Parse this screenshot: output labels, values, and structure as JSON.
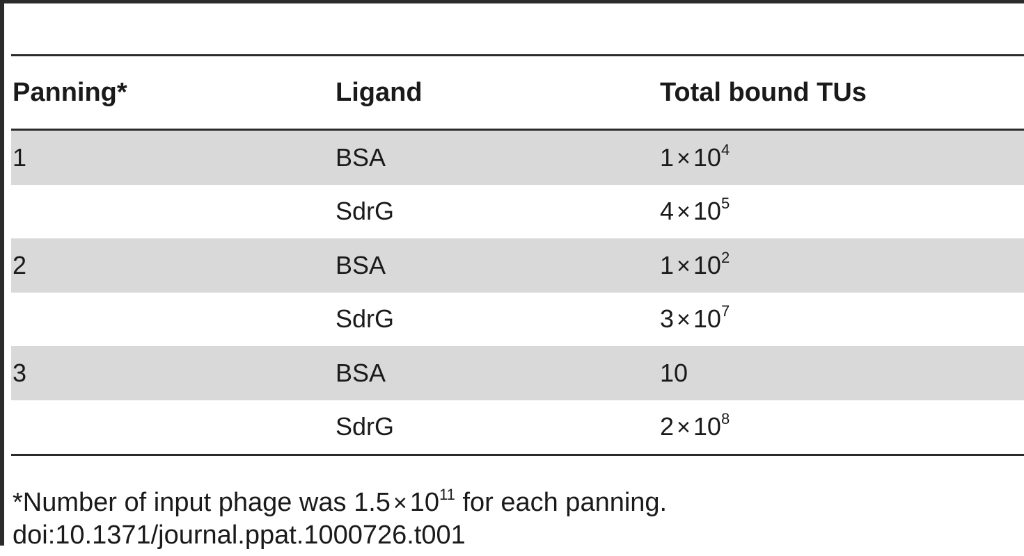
{
  "table": {
    "headers": [
      "Panning*",
      "Ligand",
      "Total bound TUs"
    ],
    "rows": [
      {
        "panning": "1",
        "ligand": "BSA",
        "coef": "1",
        "exp": "4"
      },
      {
        "panning": "",
        "ligand": "SdrG",
        "coef": "4",
        "exp": "5"
      },
      {
        "panning": "2",
        "ligand": "BSA",
        "coef": "1",
        "exp": "2"
      },
      {
        "panning": "",
        "ligand": "SdrG",
        "coef": "3",
        "exp": "7"
      },
      {
        "panning": "3",
        "ligand": "BSA",
        "plain": "10"
      },
      {
        "panning": "",
        "ligand": "SdrG",
        "coef": "2",
        "exp": "8"
      }
    ]
  },
  "footnote": {
    "text_before": "*Number of input phage was 1.5",
    "times": "×",
    "base": "10",
    "exp": "11",
    "text_after": " for each panning.",
    "doi": "doi:10.1371/journal.ppat.1000726.t001"
  },
  "colors": {
    "rule": "#2b2b2b",
    "shade": "#d9d9d9"
  }
}
